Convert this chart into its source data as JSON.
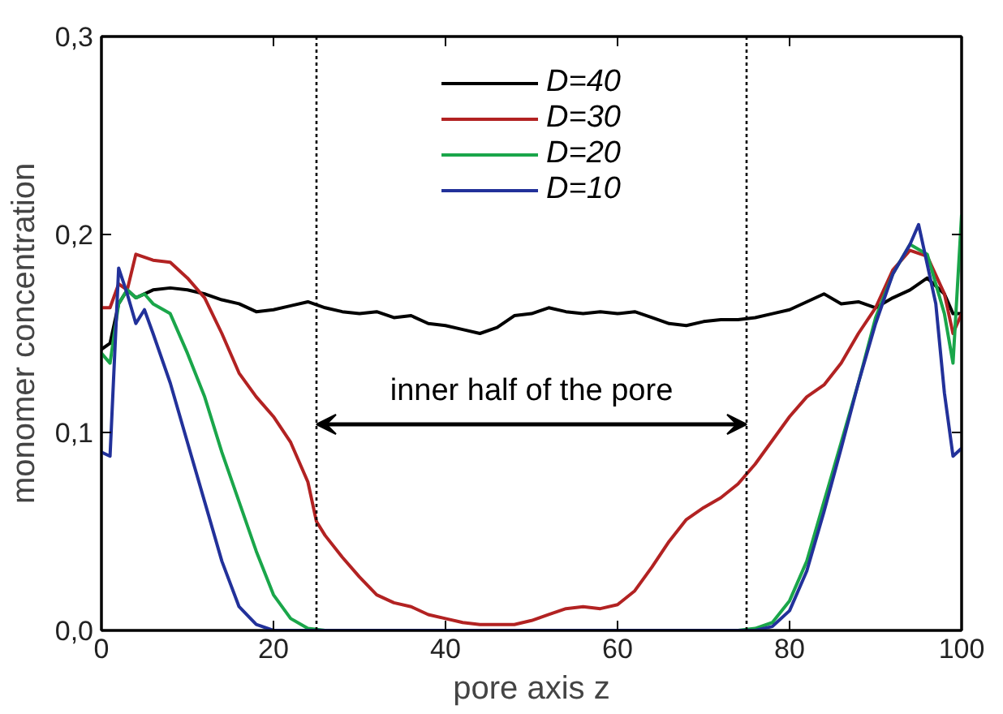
{
  "chart_data": {
    "type": "line",
    "xlabel": "pore axis z",
    "ylabel": "monomer concentration",
    "xlim": [
      0,
      100
    ],
    "ylim": [
      0,
      0.3
    ],
    "xticks": [
      0,
      20,
      40,
      60,
      80,
      100
    ],
    "yticks": [
      {
        "value": 0,
        "label": "0,0"
      },
      {
        "value": 0.1,
        "label": "0,1"
      },
      {
        "value": 0.2,
        "label": "0,2"
      },
      {
        "value": 0.3,
        "label": "0,3"
      }
    ],
    "legend": "top",
    "grid": false,
    "line_style": "solid",
    "marker": "none",
    "ref_lines": [
      {
        "axis": "x",
        "value": 25,
        "label": null,
        "color": "#000000",
        "line_style": "dotted"
      },
      {
        "axis": "x",
        "value": 75,
        "label": null,
        "color": "#000000",
        "line_style": "dotted"
      }
    ],
    "annotations": [
      "inner half of the pore"
    ],
    "series": [
      {
        "name": "D=40",
        "color": "#000000",
        "x": [
          0,
          1,
          2,
          3,
          4,
          6,
          8,
          10,
          12,
          14,
          16,
          18,
          20,
          22,
          24,
          26,
          28,
          30,
          32,
          34,
          36,
          38,
          40,
          42,
          44,
          46,
          48,
          50,
          52,
          54,
          56,
          58,
          60,
          62,
          64,
          66,
          68,
          70,
          72,
          74,
          76,
          78,
          80,
          82,
          84,
          86,
          88,
          90,
          92,
          94,
          96,
          98,
          99,
          100
        ],
        "values": [
          0.142,
          0.145,
          0.165,
          0.172,
          0.168,
          0.172,
          0.173,
          0.172,
          0.17,
          0.167,
          0.165,
          0.161,
          0.162,
          0.164,
          0.166,
          0.163,
          0.161,
          0.16,
          0.161,
          0.158,
          0.159,
          0.155,
          0.154,
          0.152,
          0.15,
          0.153,
          0.159,
          0.16,
          0.163,
          0.161,
          0.16,
          0.161,
          0.16,
          0.161,
          0.158,
          0.155,
          0.154,
          0.156,
          0.157,
          0.157,
          0.158,
          0.16,
          0.162,
          0.166,
          0.17,
          0.165,
          0.166,
          0.163,
          0.168,
          0.172,
          0.178,
          0.17,
          0.16,
          0.16
        ]
      },
      {
        "name": "D=30",
        "color": "#b22222",
        "x": [
          0,
          1,
          2,
          3,
          4,
          6,
          8,
          10,
          12,
          14,
          16,
          18,
          20,
          22,
          24,
          25,
          26,
          28,
          30,
          32,
          34,
          36,
          38,
          40,
          42,
          44,
          46,
          48,
          50,
          52,
          54,
          56,
          58,
          60,
          62,
          64,
          66,
          68,
          70,
          72,
          74,
          76,
          78,
          80,
          82,
          84,
          86,
          88,
          90,
          92,
          94,
          96,
          98,
          99,
          100
        ],
        "values": [
          0.163,
          0.163,
          0.175,
          0.172,
          0.19,
          0.187,
          0.186,
          0.178,
          0.168,
          0.15,
          0.13,
          0.118,
          0.108,
          0.095,
          0.075,
          0.055,
          0.048,
          0.037,
          0.027,
          0.018,
          0.014,
          0.012,
          0.008,
          0.006,
          0.004,
          0.003,
          0.003,
          0.003,
          0.005,
          0.008,
          0.011,
          0.012,
          0.011,
          0.013,
          0.02,
          0.032,
          0.045,
          0.056,
          0.062,
          0.067,
          0.074,
          0.084,
          0.096,
          0.108,
          0.118,
          0.124,
          0.135,
          0.15,
          0.163,
          0.182,
          0.192,
          0.189,
          0.17,
          0.15,
          0.16
        ]
      },
      {
        "name": "D=20",
        "color": "#1aa64a",
        "x": [
          0,
          1,
          2,
          3,
          4,
          5,
          6,
          8,
          10,
          12,
          14,
          16,
          18,
          20,
          22,
          24,
          26,
          74,
          76,
          78,
          80,
          82,
          84,
          86,
          88,
          90,
          92,
          94,
          96,
          98,
          99,
          100
        ],
        "values": [
          0.14,
          0.135,
          0.165,
          0.172,
          0.168,
          0.17,
          0.165,
          0.16,
          0.14,
          0.118,
          0.09,
          0.065,
          0.04,
          0.018,
          0.006,
          0.001,
          0,
          0,
          0.001,
          0.004,
          0.015,
          0.035,
          0.065,
          0.095,
          0.125,
          0.158,
          0.18,
          0.195,
          0.19,
          0.16,
          0.135,
          0.21
        ]
      },
      {
        "name": "D=10",
        "color": "#22319a",
        "x": [
          0,
          1,
          2,
          3,
          4,
          5,
          6,
          8,
          10,
          12,
          14,
          16,
          18,
          20,
          76,
          78,
          80,
          82,
          84,
          86,
          88,
          90,
          92,
          94,
          95,
          96,
          97,
          98,
          99,
          100
        ],
        "values": [
          0.09,
          0.088,
          0.183,
          0.17,
          0.155,
          0.162,
          0.15,
          0.125,
          0.095,
          0.065,
          0.035,
          0.012,
          0.003,
          0,
          0,
          0.002,
          0.01,
          0.03,
          0.06,
          0.092,
          0.125,
          0.155,
          0.18,
          0.195,
          0.205,
          0.185,
          0.165,
          0.12,
          0.088,
          0.092
        ]
      }
    ]
  }
}
